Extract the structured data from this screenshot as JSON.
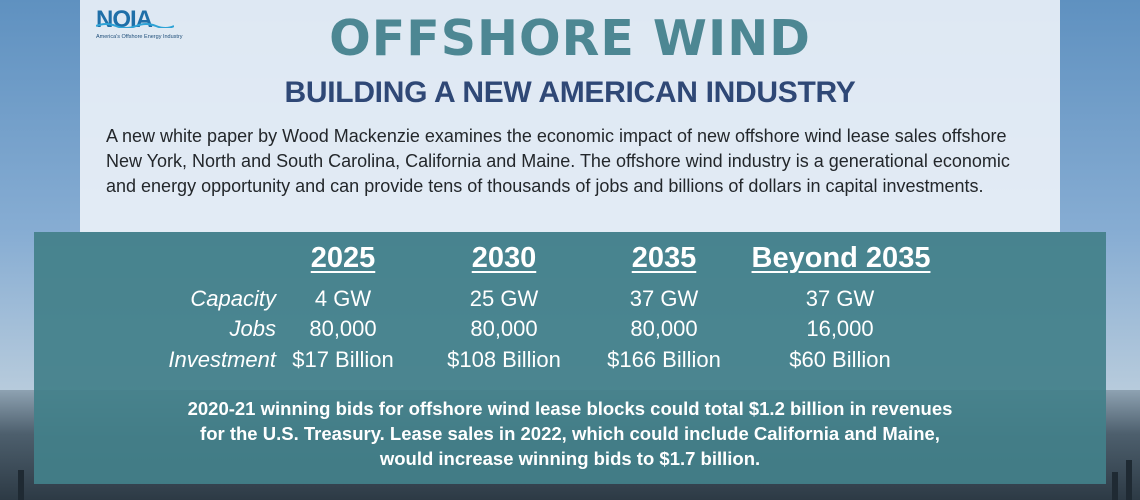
{
  "logo": {
    "wordmark": "NOIA",
    "tagline": "America's Offshore Energy Industry"
  },
  "header": {
    "title": "OFFSHORE WIND",
    "subtitle": "BUILDING A NEW AMERICAN INDUSTRY"
  },
  "intro": {
    "text": "A new white paper by Wood Mackenzie examines the economic impact of new offshore wind lease sales offshore New York, North and South Carolina, California and Maine. The offshore wind industry is a generational economic and energy opportunity and can provide tens of thousands of jobs and billions of dollars in capital investments."
  },
  "table": {
    "columns": [
      "2025",
      "2030",
      "2035",
      "Beyond 2035"
    ],
    "rows": [
      {
        "label": "Capacity",
        "values": [
          "4 GW",
          "25 GW",
          "37 GW",
          "37 GW"
        ]
      },
      {
        "label": "Jobs",
        "values": [
          "80,000",
          "80,000",
          "80,000",
          "16,000"
        ]
      },
      {
        "label": "Investment",
        "values": [
          "$17 Billion",
          "$108 Billion",
          "$166 Billion",
          "$60 Billion"
        ]
      }
    ]
  },
  "footer": {
    "lines": [
      "2020-21 winning bids for offshore wind lease blocks could total $1.2 billion in revenues",
      "for the U.S. Treasury. Lease sales in 2022, which could include California and Maine,",
      "would increase winning bids  to $1.7 billion."
    ]
  },
  "colors": {
    "title": "#4d8793",
    "subtitle": "#2f4876",
    "table_panel": "#43808a",
    "logo": "#1f6fa8"
  }
}
